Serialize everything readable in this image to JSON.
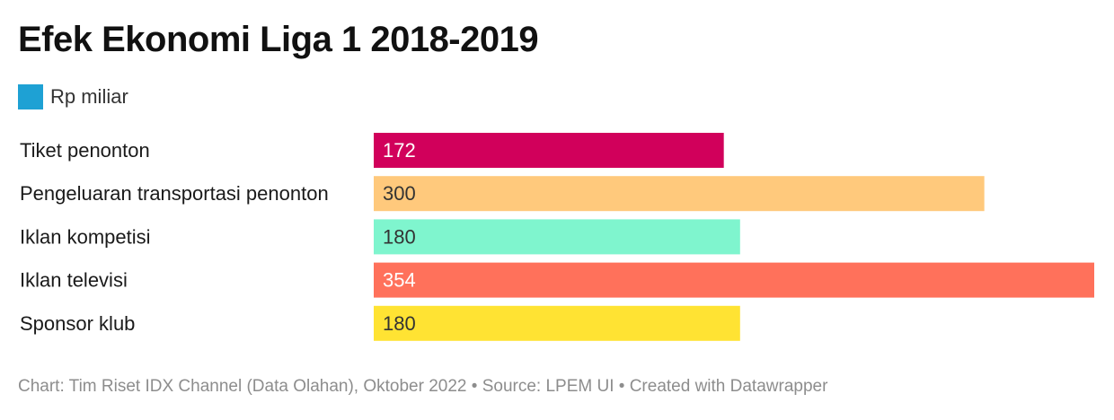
{
  "title": "Efek Ekonomi Liga 1 2018-2019",
  "legend": {
    "label": "Rp miliar",
    "color": "#1ea1d4"
  },
  "footer": "Chart: Tim Riset IDX Channel (Data Olahan), Oktober 2022 • Source: LPEM UI • Created with Datawrapper",
  "chart_data": {
    "type": "bar",
    "orientation": "horizontal",
    "title": "Efek Ekonomi Liga 1 2018-2019",
    "unit": "Rp miliar",
    "categories": [
      "Tiket penonton",
      "Pengeluaran transportasi penonton",
      "Iklan kompetisi",
      "Iklan televisi",
      "Sponsor klub"
    ],
    "values": [
      172,
      300,
      180,
      354,
      180
    ],
    "colors": [
      "#d1005b",
      "#ffc97c",
      "#7ff5ce",
      "#ff715b",
      "#ffe333"
    ],
    "label_colors": [
      "#ffffff",
      "#333333",
      "#333333",
      "#ffffff",
      "#333333"
    ],
    "xlim": [
      0,
      354
    ],
    "grid": false
  }
}
